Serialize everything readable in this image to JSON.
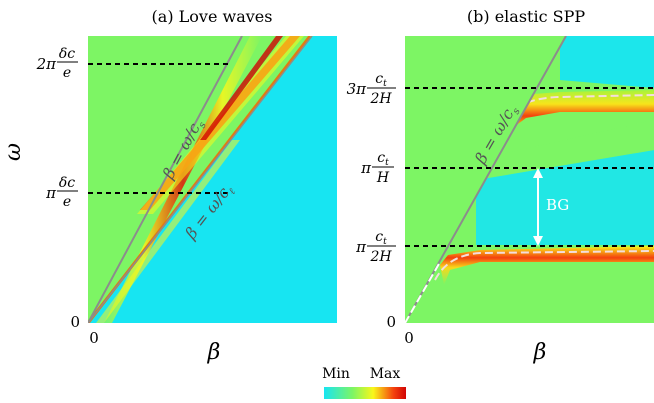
{
  "colorbar": {
    "min_label": "Min",
    "max_label": "Max",
    "colors": [
      "#17e5f2",
      "#7df564",
      "#f9f71a",
      "#f4410e",
      "#d10404"
    ]
  },
  "chart_data": [
    {
      "type": "heatmap",
      "title": "(a) Love waves",
      "xlabel": "β",
      "ylabel": "ω",
      "x_ticks": [
        {
          "value": 0,
          "label": "0"
        }
      ],
      "y_ticks": [
        {
          "value": 0,
          "label": "0"
        },
        {
          "value": 1,
          "label": "πδc/e",
          "prefix": "π",
          "num": "δc",
          "den": "e"
        },
        {
          "value": 2,
          "label": "2πδc/e",
          "prefix": "2π",
          "num": "δc",
          "den": "e"
        }
      ],
      "ylim": [
        0,
        2.42
      ],
      "xlim": [
        0,
        1
      ],
      "hlines": [
        1,
        2
      ],
      "line_annotations": [
        {
          "label": "β = ω/cs",
          "main": "β = ω/c",
          "sub": "s"
        },
        {
          "label": "β = ω/cℓ",
          "main": "β = ω/c",
          "sub": "ℓ"
        }
      ],
      "colors": {
        "background_left": "#7df564",
        "background_right": "#17e5f2",
        "line": "#8c8c8c",
        "dash": "#000000"
      }
    },
    {
      "type": "heatmap",
      "title": "(b) elastic SPP",
      "xlabel": "β",
      "ylabel": "",
      "x_ticks": [
        {
          "value": 0,
          "label": "0"
        }
      ],
      "y_ticks": [
        {
          "value": 0,
          "label": "0"
        },
        {
          "value": 1,
          "label": "πct/2H",
          "prefix": "π",
          "num": "c",
          "num_sub": "t",
          "den": "2H"
        },
        {
          "value": 2,
          "label": "πct/H",
          "prefix": "π",
          "num": "c",
          "num_sub": "t",
          "den": "H"
        },
        {
          "value": 3,
          "label": "3πct/2H",
          "prefix": "3π",
          "num": "c",
          "num_sub": "t",
          "den": "2H"
        }
      ],
      "ylim": [
        0,
        3.62
      ],
      "xlim": [
        0,
        1
      ],
      "hlines": [
        1,
        2,
        3
      ],
      "line_annotations": [
        {
          "label": "β = ω/cs",
          "main": "β = ω/c",
          "sub": "s"
        }
      ],
      "band_gap": {
        "label": "BG",
        "from": 1,
        "to": 2
      },
      "colors": {
        "background_left": "#7df564",
        "background_right": "#17e5f2",
        "line": "#8c8c8c",
        "dash": "#000000",
        "arrow": "#ffffff"
      }
    }
  ]
}
